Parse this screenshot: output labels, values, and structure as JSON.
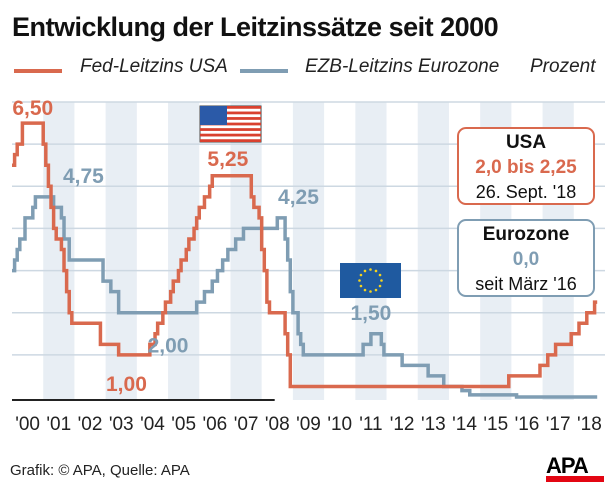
{
  "chart_data": {
    "type": "line",
    "step": true,
    "title": "Entwicklung der Leitzinssätze seit 2000",
    "unit_label": "Prozent",
    "x_tick_labels": [
      "'00",
      "'01",
      "'02",
      "'03",
      "'04",
      "'05",
      "'06",
      "'07",
      "'08",
      "'09",
      "'10",
      "'11",
      "'12",
      "'13",
      "'14",
      "'15",
      "'16",
      "'17",
      "'18"
    ],
    "xlim": [
      "2000-01",
      "2018-12"
    ],
    "ylim": [
      0,
      7
    ],
    "y_gridlines": [
      1,
      2,
      3,
      4,
      5,
      6,
      7
    ],
    "grid": true,
    "legend_placement": "top",
    "series": [
      {
        "name": "Fed-Leitzins USA",
        "color": "#d9694e",
        "points": [
          [
            "2000-01",
            5.5
          ],
          [
            "2000-02",
            5.75
          ],
          [
            "2000-03",
            6.0
          ],
          [
            "2000-05",
            6.5
          ],
          [
            "2001-01",
            6.0
          ],
          [
            "2001-02",
            5.5
          ],
          [
            "2001-03",
            5.0
          ],
          [
            "2001-04",
            4.5
          ],
          [
            "2001-05",
            4.0
          ],
          [
            "2001-06",
            3.75
          ],
          [
            "2001-08",
            3.5
          ],
          [
            "2001-09",
            3.0
          ],
          [
            "2001-10",
            2.5
          ],
          [
            "2001-11",
            2.0
          ],
          [
            "2001-12",
            1.75
          ],
          [
            "2002-11",
            1.25
          ],
          [
            "2003-06",
            1.0
          ],
          [
            "2004-06",
            1.25
          ],
          [
            "2004-08",
            1.5
          ],
          [
            "2004-09",
            1.75
          ],
          [
            "2004-11",
            2.0
          ],
          [
            "2004-12",
            2.25
          ],
          [
            "2005-02",
            2.5
          ],
          [
            "2005-03",
            2.75
          ],
          [
            "2005-05",
            3.0
          ],
          [
            "2005-06",
            3.25
          ],
          [
            "2005-08",
            3.5
          ],
          [
            "2005-09",
            3.75
          ],
          [
            "2005-11",
            4.0
          ],
          [
            "2005-12",
            4.25
          ],
          [
            "2006-01",
            4.5
          ],
          [
            "2006-03",
            4.75
          ],
          [
            "2006-05",
            5.0
          ],
          [
            "2006-06",
            5.25
          ],
          [
            "2007-09",
            4.75
          ],
          [
            "2007-10",
            4.5
          ],
          [
            "2007-12",
            4.25
          ],
          [
            "2008-01",
            3.5
          ],
          [
            "2008-02",
            3.0
          ],
          [
            "2008-03",
            2.25
          ],
          [
            "2008-04",
            2.0
          ],
          [
            "2008-10",
            1.5
          ],
          [
            "2008-11",
            1.0
          ],
          [
            "2008-12",
            0.25
          ],
          [
            "2015-12",
            0.5
          ],
          [
            "2016-12",
            0.75
          ],
          [
            "2017-03",
            1.0
          ],
          [
            "2017-06",
            1.25
          ],
          [
            "2017-12",
            1.5
          ],
          [
            "2018-03",
            1.75
          ],
          [
            "2018-06",
            2.0
          ],
          [
            "2018-09",
            2.25
          ],
          [
            "2018-10",
            2.25
          ]
        ]
      },
      {
        "name": "EZB-Leitzins Eurozone",
        "color": "#7f9db3",
        "points": [
          [
            "2000-01",
            3.0
          ],
          [
            "2000-02",
            3.25
          ],
          [
            "2000-03",
            3.5
          ],
          [
            "2000-04",
            3.75
          ],
          [
            "2000-06",
            4.25
          ],
          [
            "2000-09",
            4.5
          ],
          [
            "2000-10",
            4.75
          ],
          [
            "2001-05",
            4.5
          ],
          [
            "2001-08",
            4.25
          ],
          [
            "2001-09",
            3.75
          ],
          [
            "2001-11",
            3.25
          ],
          [
            "2002-12",
            2.75
          ],
          [
            "2003-03",
            2.5
          ],
          [
            "2003-06",
            2.0
          ],
          [
            "2005-12",
            2.25
          ],
          [
            "2006-03",
            2.5
          ],
          [
            "2006-06",
            2.75
          ],
          [
            "2006-08",
            3.0
          ],
          [
            "2006-10",
            3.25
          ],
          [
            "2006-12",
            3.5
          ],
          [
            "2007-03",
            3.75
          ],
          [
            "2007-06",
            4.0
          ],
          [
            "2008-07",
            4.25
          ],
          [
            "2008-10",
            3.75
          ],
          [
            "2008-11",
            3.25
          ],
          [
            "2008-12",
            2.5
          ],
          [
            "2009-01",
            2.0
          ],
          [
            "2009-03",
            1.5
          ],
          [
            "2009-04",
            1.25
          ],
          [
            "2009-05",
            1.0
          ],
          [
            "2011-04",
            1.25
          ],
          [
            "2011-07",
            1.5
          ],
          [
            "2011-11",
            1.25
          ],
          [
            "2011-12",
            1.0
          ],
          [
            "2012-07",
            0.75
          ],
          [
            "2013-05",
            0.5
          ],
          [
            "2013-11",
            0.25
          ],
          [
            "2014-06",
            0.15
          ],
          [
            "2014-09",
            0.05
          ],
          [
            "2016-03",
            0.0
          ],
          [
            "2018-10",
            0.0
          ]
        ]
      }
    ],
    "annotations": [
      {
        "text": "6,50",
        "series": 0,
        "date": "2000-09",
        "value": 6.5
      },
      {
        "text": "4,75",
        "series": 1,
        "date": "2001-08",
        "value": 4.75
      },
      {
        "text": "5,25",
        "series": 0,
        "date": "2006-12",
        "value": 5.25
      },
      {
        "text": "4,25",
        "series": 1,
        "date": "2008-09",
        "value": 4.25
      },
      {
        "text": "2,00",
        "series": 1,
        "date": "2005-01",
        "value": 2.0
      },
      {
        "text": "1,00",
        "series": 0,
        "date": "2003-09",
        "value": 1.0
      },
      {
        "text": "1,50",
        "series": 1,
        "date": "2011-07",
        "value": 1.5
      }
    ]
  },
  "info_boxes": {
    "usa": {
      "title": "USA",
      "value": "2,0 bis 2,25",
      "date": "26. Sept. '18",
      "color": "#d9694e"
    },
    "eurozone": {
      "title": "Eurozone",
      "value": "0,0",
      "date": "seit März '16",
      "color": "#7f9db3"
    }
  },
  "flags": [
    "us-flag",
    "eu-flag"
  ],
  "footer": {
    "credit": "Grafik: © APA, Quelle: APA",
    "logo": "APA"
  }
}
